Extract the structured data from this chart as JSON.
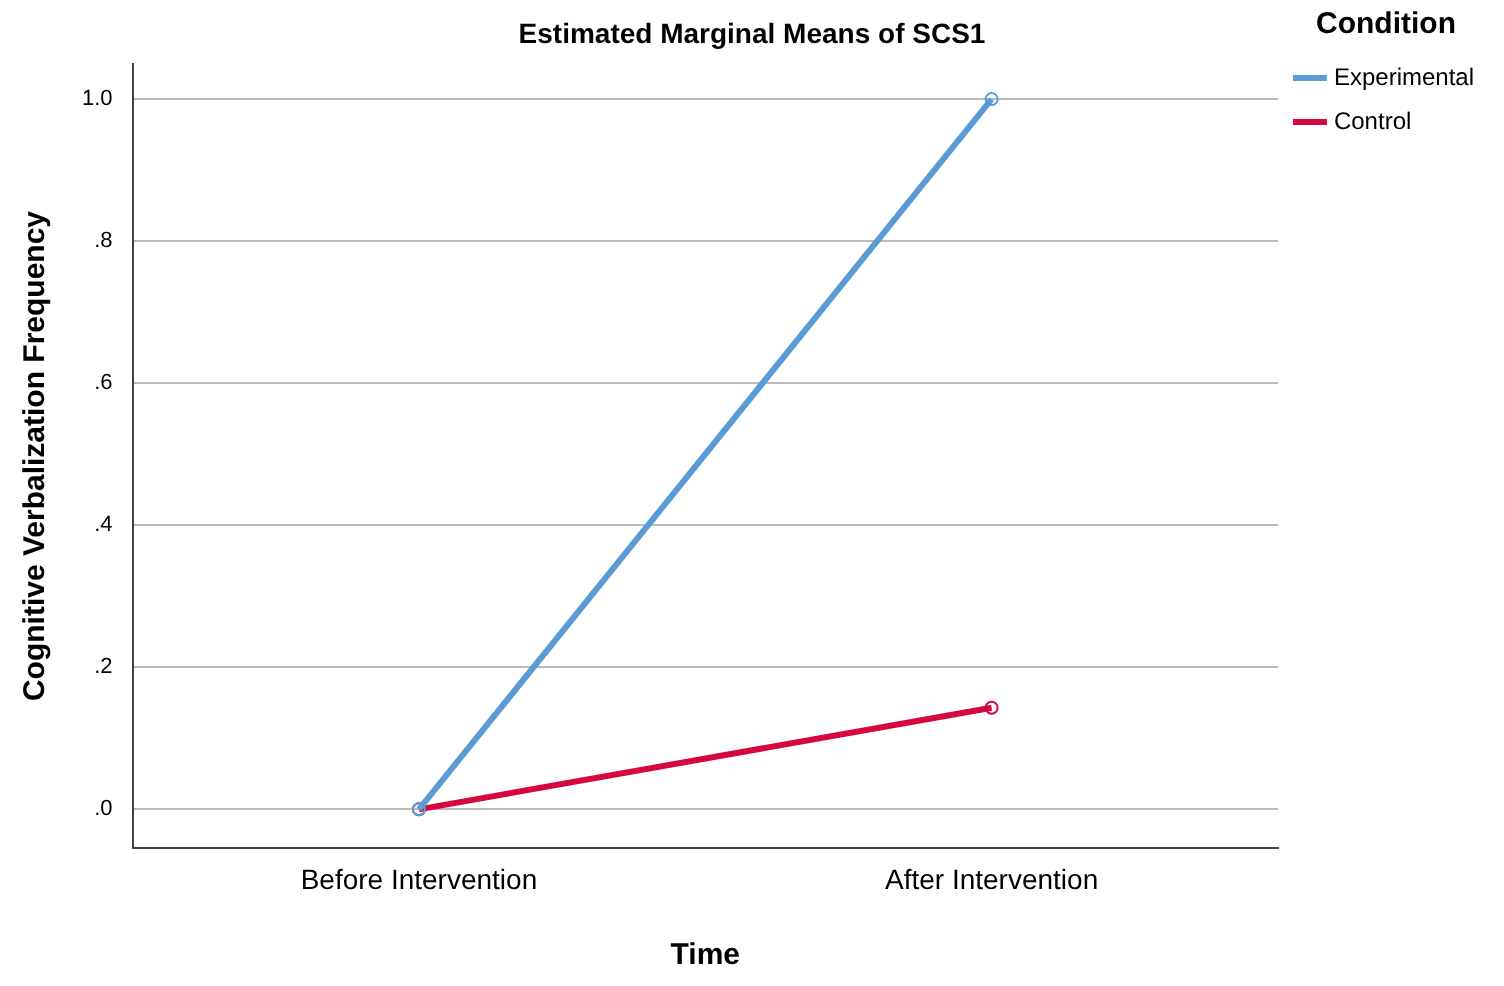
{
  "chart_data": {
    "type": "line",
    "title": "Estimated Marginal Means of SCS1",
    "xlabel": "Time",
    "ylabel": "Cognitive Verbalization Frequency",
    "legend_title": "Condition",
    "categories": [
      "Before Intervention",
      "After Intervention"
    ],
    "series": [
      {
        "name": "Experimental",
        "color": "#5b9bd5",
        "values": [
          0,
          1.0
        ]
      },
      {
        "name": "Control",
        "color": "#d5073e",
        "values": [
          0,
          0.143
        ]
      }
    ],
    "ylim": [
      -0.055,
      1.05
    ],
    "yticks": [
      {
        "value": 0,
        "label": ".0"
      },
      {
        "value": 0.2,
        "label": ".2"
      },
      {
        "value": 0.4,
        "label": ".4"
      },
      {
        "value": 0.6,
        "label": ".6"
      },
      {
        "value": 0.8,
        "label": ".8"
      },
      {
        "value": 1.0,
        "label": "1.0"
      }
    ],
    "grid": "y",
    "legend": "top right",
    "marker": "circle",
    "line_style": "solid"
  }
}
